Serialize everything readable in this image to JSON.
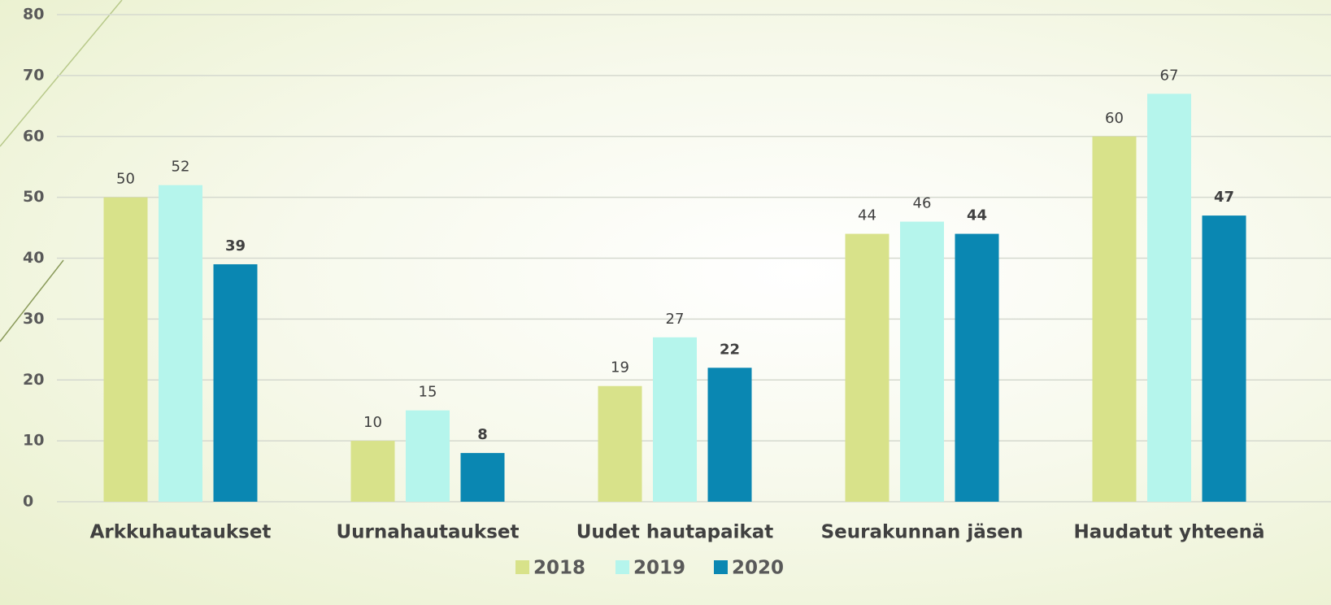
{
  "chart_data": {
    "type": "bar",
    "categories": [
      "Arkkuhautaukset",
      "Uurnahautaukset",
      "Uudet hautapaikat",
      "Seurakunnan jäsen",
      "Haudatut yhteenä"
    ],
    "series": [
      {
        "name": "2018",
        "color": "#d8e28a",
        "values": [
          50,
          10,
          19,
          44,
          60
        ]
      },
      {
        "name": "2019",
        "color": "#b5f5ec",
        "values": [
          52,
          15,
          27,
          46,
          67
        ]
      },
      {
        "name": "2020",
        "color": "#0a87b2",
        "values": [
          39,
          8,
          22,
          44,
          47
        ]
      }
    ],
    "ylim": [
      0,
      80
    ],
    "yticks": [
      0,
      10,
      20,
      30,
      40,
      50,
      60,
      70,
      80
    ],
    "grid": true,
    "legend": "bottom"
  }
}
